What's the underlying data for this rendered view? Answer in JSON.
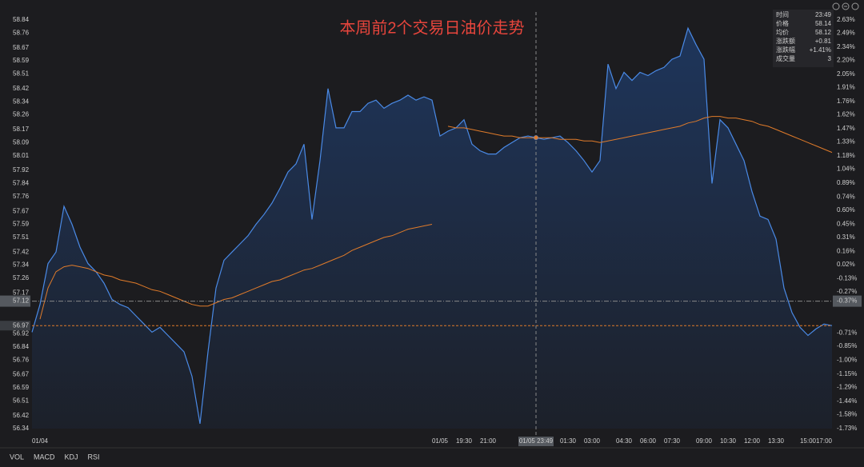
{
  "chart_data": {
    "type": "line",
    "title": "本周前2个交易日油价走势",
    "categories": [
      null,
      "01/04",
      null,
      null,
      null,
      null,
      null,
      null,
      null,
      null,
      null,
      null,
      null,
      null,
      null,
      null,
      null,
      null,
      null,
      null,
      null,
      null,
      null,
      null,
      null,
      null,
      null,
      null,
      null,
      null,
      null,
      null,
      null,
      null,
      null,
      null,
      null,
      null,
      null,
      null,
      null,
      null,
      null,
      null,
      null,
      null,
      null,
      null,
      null,
      null,
      null,
      "01/05",
      null,
      null,
      "19:30",
      null,
      null,
      "21:00",
      null,
      null,
      null,
      null,
      null,
      null,
      null,
      null,
      null,
      "01:30",
      null,
      null,
      "03:00",
      null,
      null,
      null,
      "04:30",
      null,
      null,
      "06:00",
      null,
      null,
      "07:30",
      null,
      null,
      null,
      "09:00",
      null,
      null,
      "10:30",
      null,
      null,
      "12:00",
      null,
      null,
      "13:30",
      null,
      null,
      null,
      "15:00",
      null,
      null,
      "17:00"
    ],
    "series": [
      {
        "name": "价格",
        "color": "#4a8ae6",
        "values": [
          56.93,
          57.1,
          57.35,
          57.42,
          57.7,
          57.59,
          57.45,
          57.35,
          57.3,
          57.23,
          57.13,
          57.1,
          57.08,
          57.03,
          56.98,
          56.93,
          56.96,
          56.91,
          56.86,
          56.81,
          56.66,
          56.37,
          56.81,
          57.2,
          57.37,
          57.42,
          57.47,
          57.52,
          57.59,
          57.65,
          57.72,
          57.81,
          57.91,
          57.96,
          58.08,
          57.62,
          57.98,
          58.42,
          58.18,
          58.18,
          58.28,
          58.28,
          58.33,
          58.35,
          58.3,
          58.33,
          58.35,
          58.38,
          58.35,
          58.37,
          58.35,
          58.13,
          58.16,
          58.18,
          58.23,
          58.08,
          58.04,
          58.02,
          58.02,
          58.06,
          58.09,
          58.12,
          58.13,
          58.12,
          58.11,
          58.12,
          58.13,
          58.09,
          58.04,
          57.98,
          57.91,
          57.98,
          58.57,
          58.42,
          58.52,
          58.47,
          58.52,
          58.5,
          58.53,
          58.55,
          58.6,
          58.62,
          58.79,
          58.69,
          58.6,
          57.84,
          58.23,
          58.18,
          58.08,
          57.98,
          57.79,
          57.64,
          57.62,
          57.5,
          57.2,
          57.05,
          56.96,
          56.91,
          56.95,
          56.98,
          56.97
        ]
      },
      {
        "name": "均价",
        "color": "#e07b2a",
        "values": [
          null,
          57.01,
          57.2,
          57.3,
          57.33,
          57.34,
          57.33,
          57.32,
          57.3,
          57.28,
          57.27,
          57.25,
          57.24,
          57.23,
          57.21,
          57.19,
          57.18,
          57.16,
          57.14,
          57.12,
          57.1,
          57.09,
          57.09,
          57.11,
          57.13,
          57.14,
          57.16,
          57.18,
          57.2,
          57.22,
          57.24,
          57.25,
          57.27,
          57.29,
          57.31,
          57.32,
          57.34,
          57.36,
          57.38,
          57.4,
          57.43,
          57.45,
          57.47,
          57.49,
          57.51,
          57.52,
          57.54,
          57.56,
          57.57,
          57.58,
          57.59,
          null,
          58.19,
          58.18,
          58.18,
          58.17,
          58.16,
          58.15,
          58.14,
          58.13,
          58.13,
          58.12,
          58.12,
          58.12,
          58.12,
          58.12,
          58.11,
          58.11,
          58.11,
          58.1,
          58.1,
          58.09,
          58.1,
          58.11,
          58.12,
          58.13,
          58.14,
          58.15,
          58.16,
          58.17,
          58.18,
          58.19,
          58.21,
          58.22,
          58.24,
          58.25,
          58.25,
          58.24,
          58.24,
          58.23,
          58.22,
          58.2,
          58.19,
          58.17,
          58.15,
          58.13,
          58.11,
          58.09,
          58.07,
          58.05,
          58.03
        ]
      }
    ],
    "ylim": [
      56.34,
      58.84
    ],
    "yticks": [
      58.84,
      58.76,
      58.67,
      58.59,
      58.51,
      58.42,
      58.34,
      58.26,
      58.17,
      58.09,
      58.01,
      57.92,
      57.84,
      57.76,
      57.67,
      57.59,
      57.51,
      57.42,
      57.34,
      57.26,
      57.17,
      56.92,
      56.84,
      56.76,
      56.67,
      56.59,
      56.51,
      56.42,
      56.34
    ],
    "y2lim": [
      -1.73,
      2.63
    ],
    "y2ticks": [
      {
        "value": 2.63,
        "label": "2.63%"
      },
      {
        "value": 2.49,
        "label": "2.49%"
      },
      {
        "value": 2.34,
        "label": "2.34%"
      },
      {
        "value": 2.2,
        "label": "2.20%"
      },
      {
        "value": 2.05,
        "label": "2.05%"
      },
      {
        "value": 1.91,
        "label": "1.91%"
      },
      {
        "value": 1.76,
        "label": "1.76%"
      },
      {
        "value": 1.62,
        "label": "1.62%"
      },
      {
        "value": 1.47,
        "label": "1.47%"
      },
      {
        "value": 1.33,
        "label": "1.33%"
      },
      {
        "value": 1.18,
        "label": "1.18%"
      },
      {
        "value": 1.04,
        "label": "1.04%"
      },
      {
        "value": 0.89,
        "label": "0.89%"
      },
      {
        "value": 0.74,
        "label": "0.74%"
      },
      {
        "value": 0.6,
        "label": "0.60%"
      },
      {
        "value": 0.45,
        "label": "0.45%"
      },
      {
        "value": 0.31,
        "label": "0.31%"
      },
      {
        "value": 0.16,
        "label": "0.16%"
      },
      {
        "value": 0.02,
        "label": "0.02%"
      },
      {
        "value": -0.13,
        "label": "-0.13%"
      },
      {
        "value": -0.27,
        "label": "-0.27%"
      },
      {
        "value": -0.71,
        "label": "-0.71%"
      },
      {
        "value": -0.85,
        "label": "-0.85%"
      },
      {
        "value": -1.0,
        "label": "-1.00%"
      },
      {
        "value": -1.15,
        "label": "-1.15%"
      },
      {
        "value": -1.29,
        "label": "-1.29%"
      },
      {
        "value": -1.44,
        "label": "-1.44%"
      },
      {
        "value": -1.58,
        "label": "-1.58%"
      },
      {
        "value": -1.73,
        "label": "-1.73%"
      }
    ],
    "grid": false,
    "up_color": "#e0403a",
    "down_color": "#2fb35a",
    "crosshair": {
      "x_label": "01/05 23:49",
      "price": 57.12,
      "change": {
        "value": -0.37,
        "label": "-0.37%"
      }
    },
    "reference_line": {
      "value": 56.97,
      "color": "#e07b2a"
    }
  },
  "info_panel": {
    "rows": [
      [
        "时间",
        "23:49"
      ],
      [
        "价格",
        "58.14"
      ],
      [
        "均价",
        "58.12"
      ],
      [
        "涨跌额",
        "+0.81"
      ],
      [
        "涨跌幅",
        "+1.41%"
      ],
      [
        "成交量",
        "3"
      ]
    ]
  },
  "tabs": [
    "VOL",
    "MACD",
    "KDJ",
    "RSI"
  ]
}
